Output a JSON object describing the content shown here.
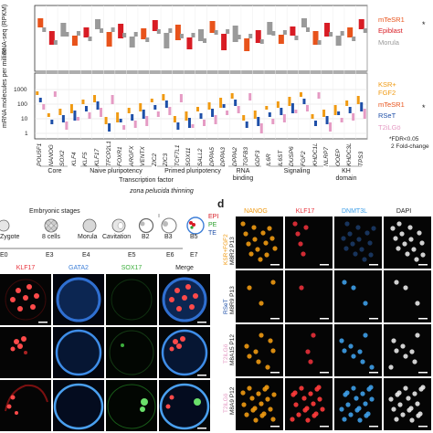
{
  "top_chart": {
    "ylabel_upper": "RNA-seq (RPKM)",
    "ylabel_lower": "mRNA molecules per million",
    "legend_upper": [
      {
        "label": "mTeSR1",
        "color": "#e8531b"
      },
      {
        "label": "Epiblast",
        "color": "#d81c24"
      },
      {
        "label": "Morula",
        "color": "#9a9a9a"
      }
    ],
    "legend_lower": [
      {
        "label": "KSR+",
        "color": "#f09a12"
      },
      {
        "label": "FGF2",
        "color": "#f09a12"
      },
      {
        "label": "mTeSR1",
        "color": "#e8531b"
      },
      {
        "label": "RSeT",
        "color": "#1e4fa8"
      },
      {
        "label": "T2iLGö",
        "color": "#e59bc4"
      }
    ],
    "star": "*",
    "footnote_1": "*FDR<0.05",
    "footnote_2": "2 Fold-change",
    "yticks_lower": [
      "1000",
      "100",
      "10",
      "1"
    ],
    "genes": [
      "POU5F1",
      "NANOG",
      "SOX2",
      "KLF4",
      "KLF5",
      "KLF17",
      "TFCP2L1",
      "FOXR1",
      "ARGFX",
      "VENTX",
      "ZIC2",
      "ZIC3",
      "TCF7L1",
      "SOX11",
      "SALL2",
      "DPPA5",
      "DPPA3",
      "DPPA2",
      "TGFB3",
      "GDF3",
      "IL6R",
      "IL6ST",
      "DUSP6",
      "FGF2",
      "KHDC1L",
      "NLRP7",
      "OOEP",
      "KHDC3L",
      "TPS3"
    ],
    "categories": [
      {
        "label": "Core"
      },
      {
        "label": "Naive pluripotency"
      },
      {
        "label": "Primed pluripotency"
      },
      {
        "label": "RNA binding"
      },
      {
        "label": "Signaling"
      },
      {
        "label": "KH domain"
      },
      {
        "label": "Transcription factor"
      }
    ]
  },
  "panel_c": {
    "stages_header": "Embryonic stages",
    "zona_label": "zona pelucida thinning",
    "stage_labels": [
      "Zygote",
      "8 cells",
      "Morula",
      "Cavitation",
      "B2",
      "B3",
      "B5"
    ],
    "day_labels": [
      "E0",
      "E3",
      "E4",
      "E5",
      "E6",
      "E7"
    ],
    "lineage": [
      {
        "label": "EPI",
        "color": "#d81c24"
      },
      {
        "label": "PE",
        "color": "#2ca02c"
      },
      {
        "label": "TE",
        "color": "#1e4fa8"
      }
    ],
    "stain_headers": [
      {
        "label": "KLF17",
        "color": "#e8303a"
      },
      {
        "label": "GATA2",
        "color": "#3e7fd8"
      },
      {
        "label": "SOX17",
        "color": "#3cae3c"
      },
      {
        "label": "Merge",
        "color": "#222222"
      }
    ]
  },
  "panel_d": {
    "panel_letter": "d",
    "headers": [
      {
        "label": "NANOG",
        "color": "#f09a12"
      },
      {
        "label": "KLF17",
        "color": "#e8303a"
      },
      {
        "label": "DNMT3L",
        "color": "#3e9fe8"
      },
      {
        "label": "DAPI",
        "color": "#222222"
      }
    ],
    "rows": [
      {
        "cond": "KSR+FGF2",
        "cond_color": "#f09a12",
        "line": "M8R2 P13"
      },
      {
        "cond": "RSeT",
        "cond_color": "#1e4fa8",
        "line": "M8R9 P13"
      },
      {
        "cond": "T2iLGö",
        "cond_color": "#e59bc4",
        "line": "M8A15 P12"
      },
      {
        "cond": "T2iLGö",
        "cond_color": "#e59bc4",
        "line": "M8A9 P12"
      }
    ]
  }
}
